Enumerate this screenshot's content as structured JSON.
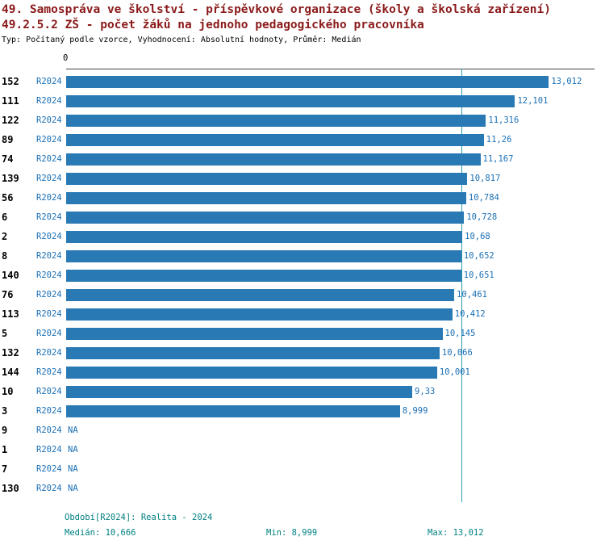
{
  "titles": {
    "line1": "49. Samospráva ve školství - příspěvkové organizace (školy a školská zařízení)",
    "line2": "49.2.5.2 ZŠ - počet žáků na jednoho pedagogického pracovníka",
    "subtitle": "Typ: Počítaný podle vzorce, Vyhodnocení: Absolutní hodnoty, Průměr: Medián"
  },
  "axis": {
    "zero_label": "0"
  },
  "footer": {
    "period": "Období[R2024]: Realita - 2024",
    "median": "Medián: 10,666",
    "min": "Min: 8,999",
    "max": "Max: 13,012"
  },
  "colors": {
    "title": "#8B1A1A",
    "bar": "#2979B5",
    "link": "#1A6FB5",
    "median_line": "#2E9AAE",
    "footer": "#008080"
  },
  "chart_data": {
    "type": "bar",
    "orientation": "horizontal",
    "title": "49.2.5.2 ZŠ - počet žáků na jednoho pedagogického pracovníka",
    "xlabel": "",
    "ylabel": "",
    "xlim": [
      0,
      14.2
    ],
    "x_axis_zero_label": "0",
    "grid": false,
    "legend_position": "none",
    "median_value": 10.666,
    "stats": {
      "median": 10.666,
      "min": 8.999,
      "max": 13.012
    },
    "categories": [
      "152",
      "111",
      "122",
      "89",
      "74",
      "139",
      "56",
      "6",
      "2",
      "8",
      "140",
      "76",
      "113",
      "5",
      "132",
      "144",
      "10",
      "3",
      "9",
      "1",
      "7",
      "130"
    ],
    "series": [
      {
        "name": "R2024",
        "values": [
          13.012,
          12.101,
          11.316,
          11.26,
          11.167,
          10.817,
          10.784,
          10.728,
          10.68,
          10.652,
          10.651,
          10.461,
          10.412,
          10.145,
          10.066,
          10.001,
          9.33,
          8.999,
          null,
          null,
          null,
          null
        ]
      }
    ],
    "rows": [
      {
        "id": "152",
        "period": "R2024",
        "value": 13.012,
        "label": "13,012"
      },
      {
        "id": "111",
        "period": "R2024",
        "value": 12.101,
        "label": "12,101"
      },
      {
        "id": "122",
        "period": "R2024",
        "value": 11.316,
        "label": "11,316"
      },
      {
        "id": "89",
        "period": "R2024",
        "value": 11.26,
        "label": "11,26"
      },
      {
        "id": "74",
        "period": "R2024",
        "value": 11.167,
        "label": "11,167"
      },
      {
        "id": "139",
        "period": "R2024",
        "value": 10.817,
        "label": "10,817"
      },
      {
        "id": "56",
        "period": "R2024",
        "value": 10.784,
        "label": "10,784"
      },
      {
        "id": "6",
        "period": "R2024",
        "value": 10.728,
        "label": "10,728"
      },
      {
        "id": "2",
        "period": "R2024",
        "value": 10.68,
        "label": "10,68"
      },
      {
        "id": "8",
        "period": "R2024",
        "value": 10.652,
        "label": "10,652"
      },
      {
        "id": "140",
        "period": "R2024",
        "value": 10.651,
        "label": "10,651"
      },
      {
        "id": "76",
        "period": "R2024",
        "value": 10.461,
        "label": "10,461"
      },
      {
        "id": "113",
        "period": "R2024",
        "value": 10.412,
        "label": "10,412"
      },
      {
        "id": "5",
        "period": "R2024",
        "value": 10.145,
        "label": "10,145"
      },
      {
        "id": "132",
        "period": "R2024",
        "value": 10.066,
        "label": "10,066"
      },
      {
        "id": "144",
        "period": "R2024",
        "value": 10.001,
        "label": "10,001"
      },
      {
        "id": "10",
        "period": "R2024",
        "value": 9.33,
        "label": "9,33"
      },
      {
        "id": "3",
        "period": "R2024",
        "value": 8.999,
        "label": "8,999"
      },
      {
        "id": "9",
        "period": "R2024",
        "value": null,
        "label": "NA"
      },
      {
        "id": "1",
        "period": "R2024",
        "value": null,
        "label": "NA"
      },
      {
        "id": "7",
        "period": "R2024",
        "value": null,
        "label": "NA"
      },
      {
        "id": "130",
        "period": "R2024",
        "value": null,
        "label": "NA"
      }
    ]
  }
}
